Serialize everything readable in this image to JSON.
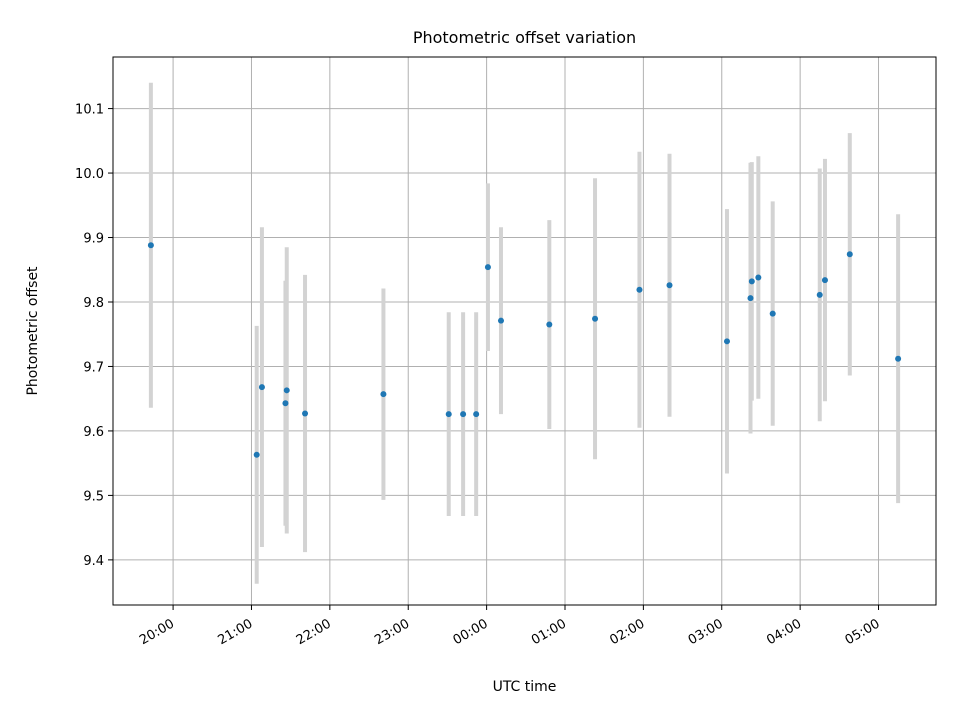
{
  "chart_data": {
    "type": "scatter",
    "title": "Photometric offset variation",
    "xlabel": "UTC time",
    "ylabel": "Photometric offset",
    "grid": true,
    "x_axis_format": "HH:MM",
    "x_ticks": [
      "20:00",
      "21:00",
      "22:00",
      "23:00",
      "00:00",
      "01:00",
      "02:00",
      "03:00",
      "04:00",
      "05:00"
    ],
    "xlim": [
      "19:14",
      "05:44"
    ],
    "y_ticks": [
      9.4,
      9.5,
      9.6,
      9.7,
      9.8,
      9.9,
      10.0,
      10.1
    ],
    "ylim": [
      9.33,
      10.18
    ],
    "marker_color": "#1f77b4",
    "errorbar_color": "#d3d3d3",
    "points": [
      {
        "x": "19:43",
        "y": 9.888,
        "err": 0.252
      },
      {
        "x": "21:04",
        "y": 9.563,
        "err": 0.2
      },
      {
        "x": "21:08",
        "y": 9.668,
        "err": 0.248
      },
      {
        "x": "21:26",
        "y": 9.643,
        "err": 0.19
      },
      {
        "x": "21:27",
        "y": 9.663,
        "err": 0.222
      },
      {
        "x": "21:41",
        "y": 9.627,
        "err": 0.215
      },
      {
        "x": "22:41",
        "y": 9.657,
        "err": 0.164
      },
      {
        "x": "23:31",
        "y": 9.626,
        "err": 0.158
      },
      {
        "x": "23:42",
        "y": 9.626,
        "err": 0.158
      },
      {
        "x": "23:52",
        "y": 9.626,
        "err": 0.158
      },
      {
        "x": "00:01",
        "y": 9.854,
        "err": 0.13
      },
      {
        "x": "00:11",
        "y": 9.771,
        "err": 0.145
      },
      {
        "x": "00:48",
        "y": 9.765,
        "err": 0.162
      },
      {
        "x": "01:23",
        "y": 9.774,
        "err": 0.218
      },
      {
        "x": "01:57",
        "y": 9.819,
        "err": 0.214
      },
      {
        "x": "02:20",
        "y": 9.826,
        "err": 0.204
      },
      {
        "x": "03:04",
        "y": 9.739,
        "err": 0.205
      },
      {
        "x": "03:22",
        "y": 9.806,
        "err": 0.21
      },
      {
        "x": "03:23",
        "y": 9.832,
        "err": 0.185
      },
      {
        "x": "03:28",
        "y": 9.838,
        "err": 0.188
      },
      {
        "x": "03:39",
        "y": 9.782,
        "err": 0.174
      },
      {
        "x": "04:15",
        "y": 9.811,
        "err": 0.196
      },
      {
        "x": "04:19",
        "y": 9.834,
        "err": 0.188
      },
      {
        "x": "04:38",
        "y": 9.874,
        "err": 0.188
      },
      {
        "x": "05:15",
        "y": 9.712,
        "err": 0.224
      }
    ]
  }
}
